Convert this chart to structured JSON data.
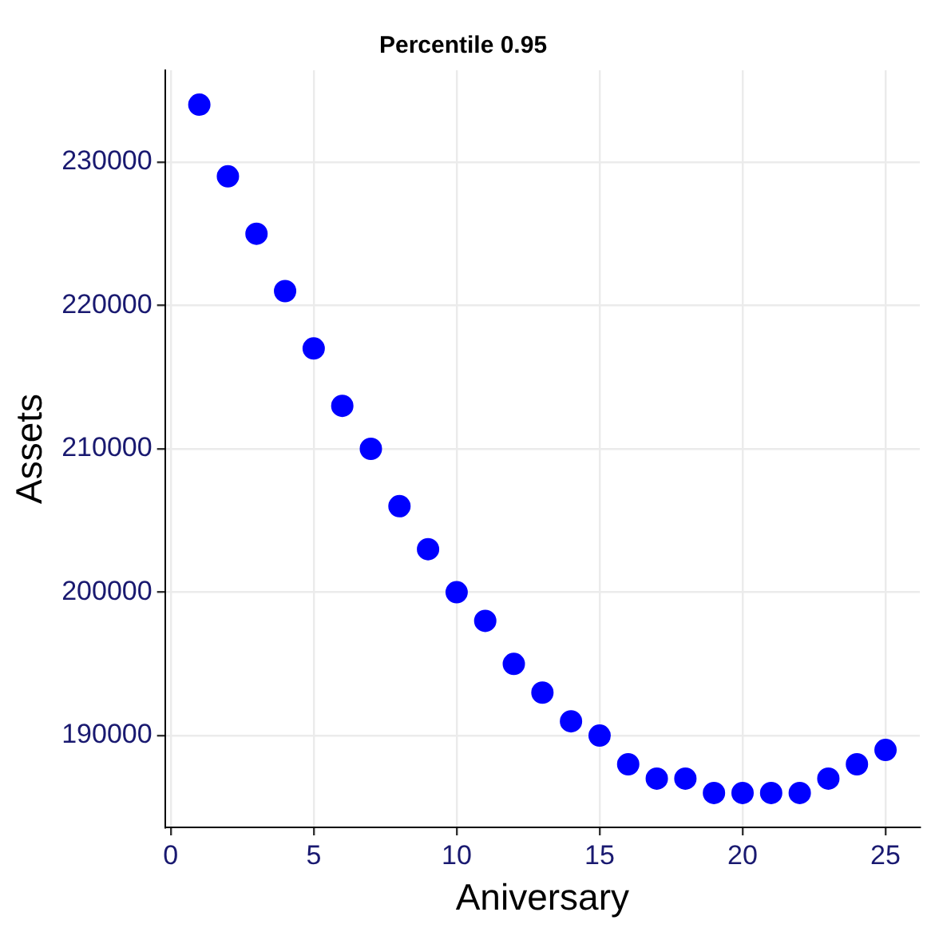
{
  "chart_data": {
    "type": "scatter",
    "title": "Percentile 0.95",
    "xlabel": "Aniversary",
    "ylabel": "Assets",
    "x": [
      1,
      2,
      3,
      4,
      5,
      6,
      7,
      8,
      9,
      10,
      11,
      12,
      13,
      14,
      15,
      16,
      17,
      18,
      19,
      20,
      21,
      22,
      23,
      24,
      25
    ],
    "series": [
      {
        "color": "#0000ff",
        "values": [
          234000,
          229000,
          225000,
          221000,
          217000,
          213000,
          210000,
          206000,
          203000,
          200000,
          198000,
          195000,
          193000,
          191000,
          190000,
          188000,
          187000,
          187000,
          186000,
          186000,
          186000,
          186000,
          187000,
          188000,
          189000
        ]
      }
    ],
    "xlim": [
      -0.2,
      26.2
    ],
    "xticks": [
      0,
      5,
      10,
      15,
      20,
      25
    ],
    "ylim": [
      183600,
      236400
    ],
    "yticks": [
      190000,
      200000,
      210000,
      220000,
      230000
    ],
    "grid": true,
    "marker": "circle",
    "legend": false
  }
}
